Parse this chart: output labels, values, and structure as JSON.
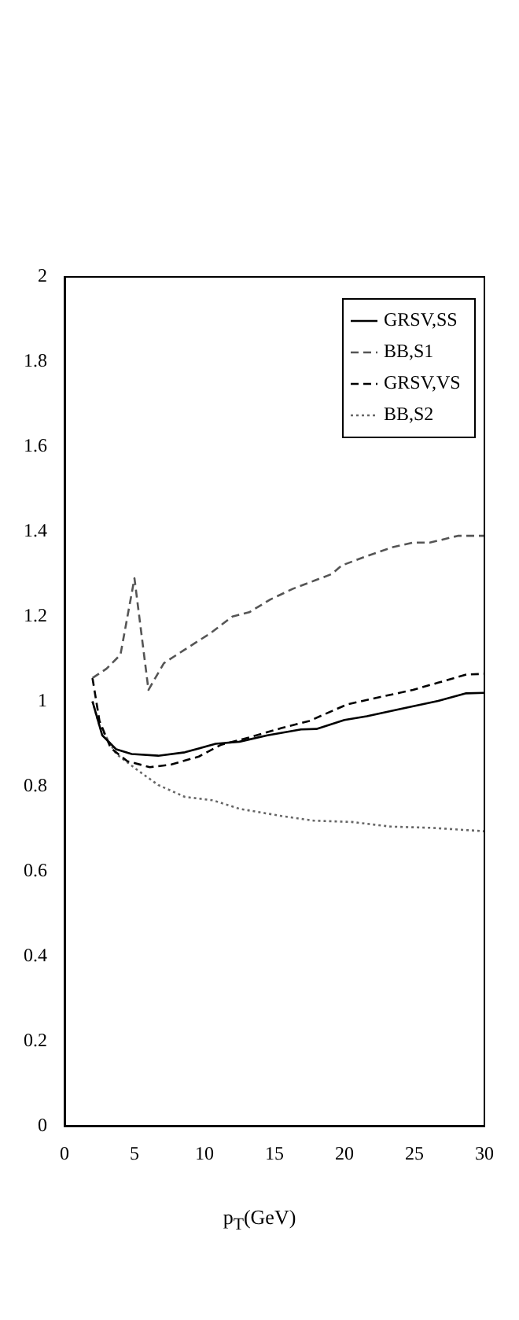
{
  "chart_data": {
    "type": "line",
    "xlabel": "p$_{T}$(GeV)",
    "xlim": [
      0,
      30
    ],
    "xticks": [
      0,
      5,
      10,
      15,
      20,
      25,
      30
    ],
    "ylim": [
      0,
      2
    ],
    "yticks": [
      0,
      {
        "value": 0.2,
        "label": "0.2"
      },
      {
        "value": 0.4,
        "label": "0.4"
      },
      {
        "value": 0.6,
        "label": "0.6"
      },
      {
        "value": 0.8,
        "label": "0.8"
      },
      1,
      {
        "value": 1.2,
        "label": "1.2"
      },
      {
        "value": 1.4,
        "label": "1.4"
      },
      {
        "value": 1.6,
        "label": "1.6"
      },
      {
        "value": 1.8,
        "label": "1.8"
      },
      2
    ],
    "grid": false,
    "legend": "top right",
    "marker": "none",
    "series": [
      {
        "name": "GRSV,SS",
        "color": "#000000",
        "line_style": "solid",
        "x": [
          2,
          2.7,
          3.7,
          4.8,
          6.7,
          8.6,
          10.8,
          12.5,
          14.5,
          16.9,
          18,
          20,
          21.6,
          24,
          26.7,
          28.7,
          30
        ],
        "values": [
          1.0,
          0.92,
          0.887,
          0.876,
          0.872,
          0.88,
          0.9,
          0.905,
          0.92,
          0.934,
          0.935,
          0.956,
          0.965,
          0.982,
          1.001,
          1.019,
          1.02
        ]
      },
      {
        "name": "BB,S1",
        "color": "#555555",
        "line_style": "dashed",
        "x": [
          2,
          3,
          4,
          5,
          6,
          7.1,
          8.5,
          10.4,
          12,
          13.2,
          14.7,
          16.3,
          17.9,
          19.1,
          19.8,
          21.4,
          23.4,
          24.9,
          26.1,
          28.1,
          30
        ],
        "values": [
          1.055,
          1.077,
          1.11,
          1.29,
          1.027,
          1.09,
          1.12,
          1.16,
          1.2,
          1.21,
          1.24,
          1.265,
          1.285,
          1.3,
          1.32,
          1.34,
          1.363,
          1.374,
          1.374,
          1.39,
          1.39
        ]
      },
      {
        "name": "GRSV,VS",
        "color": "#000000",
        "line_style": "dashed",
        "x": [
          2,
          2.5,
          3.3,
          4.5,
          6.1,
          7.6,
          9.6,
          11.2,
          13.2,
          15.5,
          17.5,
          20.2,
          22.5,
          24.9,
          26.7,
          28.7,
          30
        ],
        "values": [
          1.055,
          0.954,
          0.89,
          0.859,
          0.845,
          0.851,
          0.87,
          0.898,
          0.915,
          0.937,
          0.954,
          0.993,
          1.01,
          1.027,
          1.044,
          1.063,
          1.065
        ]
      },
      {
        "name": "BB,S2",
        "color": "#666666",
        "line_style": "dotted",
        "x": [
          2,
          2.5,
          3.7,
          5.3,
          6.7,
          8.6,
          10.6,
          12.5,
          15.5,
          17.8,
          20.5,
          23.3,
          26.3,
          30
        ],
        "values": [
          1.0,
          0.943,
          0.876,
          0.836,
          0.803,
          0.775,
          0.767,
          0.747,
          0.73,
          0.719,
          0.716,
          0.705,
          0.702,
          0.694
        ]
      }
    ]
  }
}
